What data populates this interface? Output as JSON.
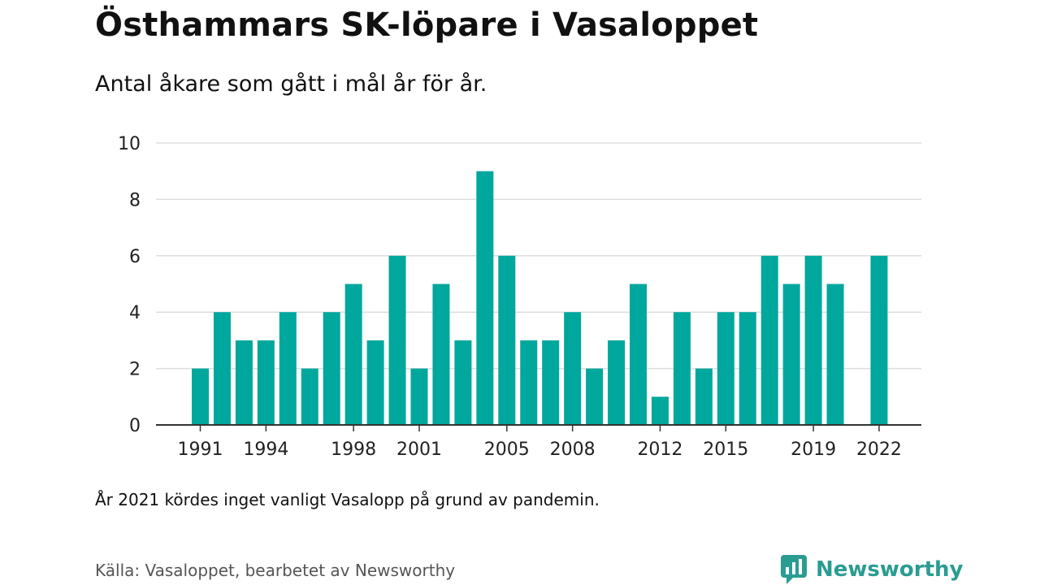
{
  "title": "Östhammars SK-löpare i Vasaloppet",
  "subtitle": "Antal åkare som gått i mål år för år.",
  "note": "År 2021 kördes inget vanligt Vasalopp på grund av pandemin.",
  "source": "Källa: Vasaloppet, bearbetet av Newsworthy",
  "logo": {
    "text": "Newsworthy",
    "icon": "newsworthy-logo-icon"
  },
  "colors": {
    "bar": "#00a79d",
    "brand": "#2a9c92",
    "grid": "#dddddd",
    "axis": "#333333"
  },
  "chart_data": {
    "type": "bar",
    "x": [
      1991,
      1992,
      1993,
      1994,
      1995,
      1996,
      1997,
      1998,
      1999,
      2000,
      2001,
      2002,
      2003,
      2004,
      2005,
      2006,
      2007,
      2008,
      2009,
      2010,
      2011,
      2012,
      2013,
      2014,
      2015,
      2016,
      2017,
      2018,
      2019,
      2020,
      2021,
      2022
    ],
    "values": [
      2,
      4,
      3,
      3,
      4,
      2,
      4,
      5,
      3,
      6,
      2,
      5,
      3,
      9,
      6,
      3,
      3,
      4,
      2,
      3,
      5,
      1,
      4,
      2,
      4,
      4,
      6,
      5,
      6,
      5,
      null,
      6
    ],
    "xticks": [
      1991,
      1994,
      1998,
      2001,
      2005,
      2008,
      2012,
      2015,
      2019,
      2022
    ],
    "yticks": [
      0,
      2,
      4,
      6,
      8,
      10
    ],
    "ylim": [
      0,
      10
    ],
    "grid": true,
    "legend": "none"
  }
}
